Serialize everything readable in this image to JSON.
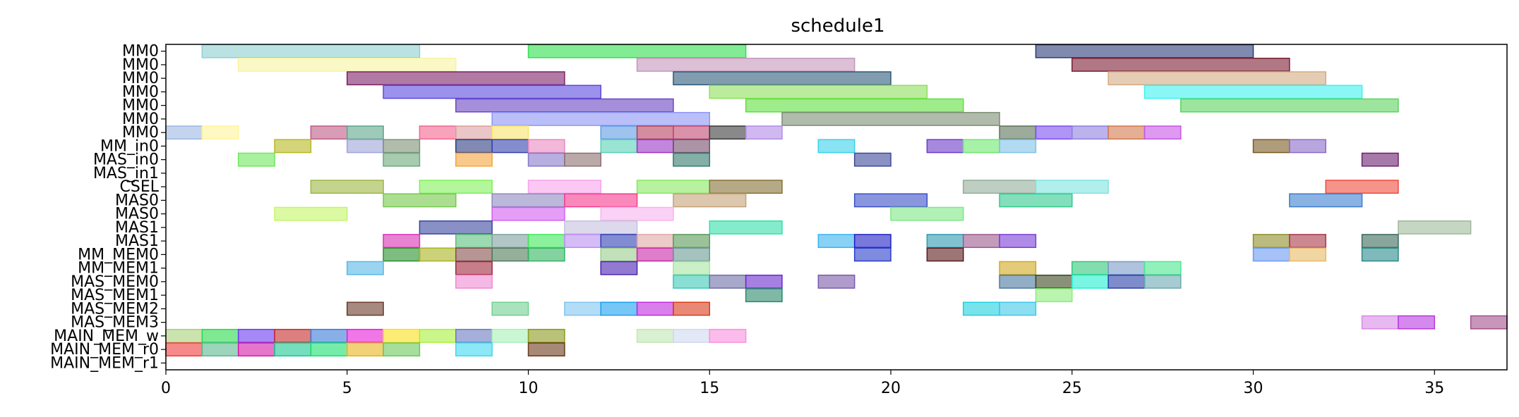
{
  "chart_data": {
    "type": "gantt",
    "title": "schedule1",
    "xlabel": "",
    "ylabel": "",
    "xlim": [
      0,
      37
    ],
    "x_ticks": [
      0,
      5,
      10,
      15,
      20,
      25,
      30,
      35
    ],
    "rows": [
      "MM0",
      "MM0",
      "MM0",
      "MM0",
      "MM0",
      "MM0",
      "MM0",
      "MM_in0",
      "MAS_in0",
      "MAS_in1",
      "CSEL",
      "MAS0",
      "MAS0",
      "MAS1",
      "MAS1",
      "MM_MEM0",
      "MM_MEM1",
      "MAS_MEM0",
      "MAS_MEM1",
      "MAS_MEM2",
      "MAS_MEM3",
      "MAIN_MEM_w",
      "MAIN_MEM_r0",
      "MAIN_MEM_r1"
    ],
    "tasks": [
      {
        "row": 0,
        "start": 1,
        "end": 7,
        "color": "#8ecfcf"
      },
      {
        "row": 0,
        "start": 10,
        "end": 16,
        "color": "#2fe04f"
      },
      {
        "row": 0,
        "start": 24,
        "end": 30,
        "color": "#2c3a78"
      },
      {
        "row": 1,
        "start": 2,
        "end": 8,
        "color": "#f6f3a2"
      },
      {
        "row": 1,
        "start": 13,
        "end": 19,
        "color": "#c396bb"
      },
      {
        "row": 1,
        "start": 25,
        "end": 31,
        "color": "#7b1e33"
      },
      {
        "row": 2,
        "start": 5,
        "end": 11,
        "color": "#7d2168"
      },
      {
        "row": 2,
        "start": 14,
        "end": 20,
        "color": "#2e5a7a"
      },
      {
        "row": 2,
        "start": 26,
        "end": 32,
        "color": "#d4ab83"
      },
      {
        "row": 3,
        "start": 6,
        "end": 12,
        "color": "#5a48e0"
      },
      {
        "row": 3,
        "start": 15,
        "end": 21,
        "color": "#8ee05c"
      },
      {
        "row": 3,
        "start": 27,
        "end": 33,
        "color": "#3cf2f0"
      },
      {
        "row": 4,
        "start": 8,
        "end": 14,
        "color": "#6b45c2"
      },
      {
        "row": 4,
        "start": 16,
        "end": 22,
        "color": "#5fe03d"
      },
      {
        "row": 4,
        "start": 28,
        "end": 34,
        "color": "#5cd35e"
      },
      {
        "row": 5,
        "start": 9,
        "end": 15,
        "color": "#8d95f5"
      },
      {
        "row": 5,
        "start": 17,
        "end": 23,
        "color": "#7d8e75"
      },
      {
        "row": 6,
        "start": 0,
        "end": 1,
        "color": "#9db8e3"
      },
      {
        "row": 6,
        "start": 1,
        "end": 2,
        "color": "#fdf59b"
      },
      {
        "row": 6,
        "start": 4,
        "end": 5,
        "color": "#be5a85"
      },
      {
        "row": 6,
        "start": 5,
        "end": 6,
        "color": "#5ba68a"
      },
      {
        "row": 6,
        "start": 7,
        "end": 8,
        "color": "#f4668e"
      },
      {
        "row": 6,
        "start": 8,
        "end": 9,
        "color": "#dca0a0"
      },
      {
        "row": 6,
        "start": 9,
        "end": 10,
        "color": "#fae36a"
      },
      {
        "row": 6,
        "start": 12,
        "end": 13,
        "color": "#5d9be3"
      },
      {
        "row": 6,
        "start": 13,
        "end": 14,
        "color": "#b4425e"
      },
      {
        "row": 6,
        "start": 14,
        "end": 15,
        "color": "#c04a70"
      },
      {
        "row": 6,
        "start": 15,
        "end": 16,
        "color": "#3a3a3a"
      },
      {
        "row": 6,
        "start": 16,
        "end": 17,
        "color": "#b18be8"
      },
      {
        "row": 6,
        "start": 23,
        "end": 24,
        "color": "#5b7358"
      },
      {
        "row": 6,
        "start": 24,
        "end": 25,
        "color": "#7a4ef0"
      },
      {
        "row": 6,
        "start": 25,
        "end": 26,
        "color": "#8f7fe0"
      },
      {
        "row": 6,
        "start": 26,
        "end": 27,
        "color": "#d2794d"
      },
      {
        "row": 6,
        "start": 27,
        "end": 28,
        "color": "#c656e6"
      },
      {
        "row": 7,
        "start": 3,
        "end": 4,
        "color": "#b7b822"
      },
      {
        "row": 7,
        "start": 5,
        "end": 6,
        "color": "#a0a4d9"
      },
      {
        "row": 7,
        "start": 6,
        "end": 7,
        "color": "#7e8f74"
      },
      {
        "row": 7,
        "start": 8,
        "end": 9,
        "color": "#2c3c80"
      },
      {
        "row": 7,
        "start": 9,
        "end": 10,
        "color": "#3242ad"
      },
      {
        "row": 7,
        "start": 10,
        "end": 11,
        "color": "#e788c0"
      },
      {
        "row": 7,
        "start": 12,
        "end": 13,
        "color": "#59d1b5"
      },
      {
        "row": 7,
        "start": 13,
        "end": 14,
        "color": "#9a35c4"
      },
      {
        "row": 7,
        "start": 14,
        "end": 15,
        "color": "#744c6b"
      },
      {
        "row": 7,
        "start": 18,
        "end": 19,
        "color": "#3ad1ea"
      },
      {
        "row": 7,
        "start": 21,
        "end": 22,
        "color": "#6b3bc9"
      },
      {
        "row": 7,
        "start": 22,
        "end": 23,
        "color": "#6ce86e"
      },
      {
        "row": 7,
        "start": 23,
        "end": 24,
        "color": "#7fc1e6"
      },
      {
        "row": 7,
        "start": 30,
        "end": 31,
        "color": "#7a5a22"
      },
      {
        "row": 7,
        "start": 31,
        "end": 32,
        "color": "#8a6bc9"
      },
      {
        "row": 8,
        "start": 2,
        "end": 3,
        "color": "#6fe85d"
      },
      {
        "row": 8,
        "start": 6,
        "end": 7,
        "color": "#6aa87a"
      },
      {
        "row": 8,
        "start": 8,
        "end": 9,
        "color": "#f5a53e"
      },
      {
        "row": 8,
        "start": 10,
        "end": 11,
        "color": "#8679c9"
      },
      {
        "row": 8,
        "start": 11,
        "end": 12,
        "color": "#8d6f70"
      },
      {
        "row": 8,
        "start": 14,
        "end": 15,
        "color": "#327a6a"
      },
      {
        "row": 8,
        "start": 19,
        "end": 20,
        "color": "#3a4a9a"
      },
      {
        "row": 8,
        "start": 33,
        "end": 34,
        "color": "#6b2070"
      },
      {
        "row": 10,
        "start": 4,
        "end": 6,
        "color": "#9cb844"
      },
      {
        "row": 10,
        "start": 7,
        "end": 9,
        "color": "#80f05a"
      },
      {
        "row": 10,
        "start": 10,
        "end": 12,
        "color": "#f8a3ec"
      },
      {
        "row": 10,
        "start": 13,
        "end": 15,
        "color": "#88e860"
      },
      {
        "row": 10,
        "start": 15,
        "end": 17,
        "color": "#857236"
      },
      {
        "row": 10,
        "start": 22,
        "end": 24,
        "color": "#93ad9a"
      },
      {
        "row": 10,
        "start": 24,
        "end": 26,
        "color": "#7fe5e0"
      },
      {
        "row": 10,
        "start": 32,
        "end": 34,
        "color": "#f04c3e"
      },
      {
        "row": 11,
        "start": 6,
        "end": 8,
        "color": "#74c84a"
      },
      {
        "row": 11,
        "start": 9,
        "end": 11,
        "color": "#8e88c0"
      },
      {
        "row": 11,
        "start": 11,
        "end": 13,
        "color": "#f63b8e"
      },
      {
        "row": 11,
        "start": 14,
        "end": 16,
        "color": "#c4a279"
      },
      {
        "row": 11,
        "start": 19,
        "end": 21,
        "color": "#3a50c8"
      },
      {
        "row": 11,
        "start": 23,
        "end": 25,
        "color": "#30c98e"
      },
      {
        "row": 11,
        "start": 31,
        "end": 33,
        "color": "#3c7ed0"
      },
      {
        "row": 12,
        "start": 3,
        "end": 5,
        "color": "#c4f567"
      },
      {
        "row": 12,
        "start": 9,
        "end": 11,
        "color": "#d25ef2"
      },
      {
        "row": 12,
        "start": 12,
        "end": 14,
        "color": "#f9b3ee"
      },
      {
        "row": 12,
        "start": 20,
        "end": 22,
        "color": "#7ee885"
      },
      {
        "row": 13,
        "start": 7,
        "end": 9,
        "color": "#3846a0"
      },
      {
        "row": 13,
        "start": 11,
        "end": 13,
        "color": "#c4c0e0"
      },
      {
        "row": 13,
        "start": 15,
        "end": 17,
        "color": "#34e0a8"
      },
      {
        "row": 13,
        "start": 34,
        "end": 36,
        "color": "#9eba9a"
      },
      {
        "row": 14,
        "start": 6,
        "end": 7,
        "color": "#d930b4"
      },
      {
        "row": 14,
        "start": 8,
        "end": 9,
        "color": "#5cbf7c"
      },
      {
        "row": 14,
        "start": 9,
        "end": 10,
        "color": "#80a0a0"
      },
      {
        "row": 14,
        "start": 10,
        "end": 11,
        "color": "#3fe85a"
      },
      {
        "row": 14,
        "start": 11,
        "end": 12,
        "color": "#b990f2"
      },
      {
        "row": 14,
        "start": 12,
        "end": 13,
        "color": "#2e40b4"
      },
      {
        "row": 14,
        "start": 13,
        "end": 14,
        "color": "#e0a8a4"
      },
      {
        "row": 14,
        "start": 14,
        "end": 15,
        "color": "#5a9a5a"
      },
      {
        "row": 14,
        "start": 18,
        "end": 19,
        "color": "#3ab4f0"
      },
      {
        "row": 14,
        "start": 19,
        "end": 20,
        "color": "#2020c4"
      },
      {
        "row": 14,
        "start": 21,
        "end": 22,
        "color": "#2e9ab0"
      },
      {
        "row": 14,
        "start": 22,
        "end": 23,
        "color": "#9c5a8e"
      },
      {
        "row": 14,
        "start": 23,
        "end": 24,
        "color": "#7a3ed6"
      },
      {
        "row": 14,
        "start": 30,
        "end": 31,
        "color": "#8e8e2a"
      },
      {
        "row": 14,
        "start": 31,
        "end": 32,
        "color": "#a83848"
      },
      {
        "row": 14,
        "start": 33,
        "end": 34,
        "color": "#3a6a5a"
      },
      {
        "row": 15,
        "start": 6,
        "end": 7,
        "color": "#2a902a"
      },
      {
        "row": 15,
        "start": 7,
        "end": 8,
        "color": "#a8b420"
      },
      {
        "row": 15,
        "start": 8,
        "end": 9,
        "color": "#84504e"
      },
      {
        "row": 15,
        "start": 9,
        "end": 10,
        "color": "#4e7a58"
      },
      {
        "row": 15,
        "start": 10,
        "end": 11,
        "color": "#30b460"
      },
      {
        "row": 15,
        "start": 12,
        "end": 13,
        "color": "#9acd8c"
      },
      {
        "row": 15,
        "start": 13,
        "end": 14,
        "color": "#c826a6"
      },
      {
        "row": 15,
        "start": 14,
        "end": 15,
        "color": "#6a9a92"
      },
      {
        "row": 15,
        "start": 19,
        "end": 20,
        "color": "#2a3ec8"
      },
      {
        "row": 15,
        "start": 21,
        "end": 22,
        "color": "#5a1a1a"
      },
      {
        "row": 15,
        "start": 30,
        "end": 31,
        "color": "#6a9af0"
      },
      {
        "row": 15,
        "start": 31,
        "end": 32,
        "color": "#e8ba68"
      },
      {
        "row": 15,
        "start": 33,
        "end": 34,
        "color": "#2a8a8a"
      },
      {
        "row": 16,
        "start": 5,
        "end": 6,
        "color": "#58b8e8"
      },
      {
        "row": 16,
        "start": 8,
        "end": 9,
        "color": "#a0283e"
      },
      {
        "row": 16,
        "start": 12,
        "end": 13,
        "color": "#4a22b0"
      },
      {
        "row": 16,
        "start": 14,
        "end": 15,
        "color": "#a8e4a0"
      },
      {
        "row": 16,
        "start": 23,
        "end": 24,
        "color": "#d0a820"
      },
      {
        "row": 16,
        "start": 25,
        "end": 26,
        "color": "#30c87a"
      },
      {
        "row": 16,
        "start": 26,
        "end": 27,
        "color": "#7a9ac8"
      },
      {
        "row": 16,
        "start": 27,
        "end": 28,
        "color": "#4ae88e"
      },
      {
        "row": 17,
        "start": 8,
        "end": 9,
        "color": "#f08ad6"
      },
      {
        "row": 17,
        "start": 14,
        "end": 15,
        "color": "#3acab6"
      },
      {
        "row": 17,
        "start": 15,
        "end": 16,
        "color": "#6e6ea8"
      },
      {
        "row": 17,
        "start": 16,
        "end": 17,
        "color": "#6a2ad0"
      },
      {
        "row": 17,
        "start": 18,
        "end": 19,
        "color": "#7a5aaa"
      },
      {
        "row": 17,
        "start": 23,
        "end": 24,
        "color": "#4a78a0"
      },
      {
        "row": 17,
        "start": 24,
        "end": 25,
        "color": "#3a4a20"
      },
      {
        "row": 17,
        "start": 25,
        "end": 26,
        "color": "#20f0d0"
      },
      {
        "row": 17,
        "start": 26,
        "end": 27,
        "color": "#2a40a8"
      },
      {
        "row": 17,
        "start": 27,
        "end": 28,
        "color": "#6aa8b0"
      },
      {
        "row": 18,
        "start": 16,
        "end": 17,
        "color": "#2a8a6a"
      },
      {
        "row": 18,
        "start": 24,
        "end": 25,
        "color": "#8aee7a"
      },
      {
        "row": 19,
        "start": 5,
        "end": 6,
        "color": "#6a3a2a"
      },
      {
        "row": 19,
        "start": 9,
        "end": 10,
        "color": "#70d090"
      },
      {
        "row": 19,
        "start": 11,
        "end": 12,
        "color": "#80c4f2"
      },
      {
        "row": 19,
        "start": 12,
        "end": 13,
        "color": "#1aa0f0"
      },
      {
        "row": 19,
        "start": 13,
        "end": 14,
        "color": "#c02ae0"
      },
      {
        "row": 19,
        "start": 14,
        "end": 15,
        "color": "#d83a1a"
      },
      {
        "row": 19,
        "start": 22,
        "end": 23,
        "color": "#20d0e0"
      },
      {
        "row": 19,
        "start": 23,
        "end": 24,
        "color": "#40c8e8"
      },
      {
        "row": 20,
        "start": 33,
        "end": 34,
        "color": "#d888e8"
      },
      {
        "row": 20,
        "start": 34,
        "end": 35,
        "color": "#b83ae0"
      },
      {
        "row": 20,
        "start": 36,
        "end": 37,
        "color": "#a44e8e"
      },
      {
        "row": 21,
        "start": 0,
        "end": 1,
        "color": "#a8d078"
      },
      {
        "row": 21,
        "start": 1,
        "end": 2,
        "color": "#2ad84a"
      },
      {
        "row": 21,
        "start": 2,
        "end": 3,
        "color": "#6a3af0"
      },
      {
        "row": 21,
        "start": 3,
        "end": 4,
        "color": "#c82a2a"
      },
      {
        "row": 21,
        "start": 4,
        "end": 5,
        "color": "#3a7ad8"
      },
      {
        "row": 21,
        "start": 5,
        "end": 6,
        "color": "#e81ad8"
      },
      {
        "row": 21,
        "start": 6,
        "end": 7,
        "color": "#fae01a"
      },
      {
        "row": 21,
        "start": 7,
        "end": 8,
        "color": "#a8f03a"
      },
      {
        "row": 21,
        "start": 8,
        "end": 9,
        "color": "#6a7ac0"
      },
      {
        "row": 21,
        "start": 9,
        "end": 10,
        "color": "#a8f0b8"
      },
      {
        "row": 21,
        "start": 10,
        "end": 11,
        "color": "#8a9a1a"
      },
      {
        "row": 21,
        "start": 13,
        "end": 14,
        "color": "#c0e8b0"
      },
      {
        "row": 21,
        "start": 14,
        "end": 15,
        "color": "#d0d8f0"
      },
      {
        "row": 21,
        "start": 15,
        "end": 16,
        "color": "#f890e0"
      },
      {
        "row": 22,
        "start": 0,
        "end": 1,
        "color": "#f03a3a"
      },
      {
        "row": 22,
        "start": 1,
        "end": 2,
        "color": "#5ab890"
      },
      {
        "row": 22,
        "start": 2,
        "end": 3,
        "color": "#d41aa8"
      },
      {
        "row": 22,
        "start": 3,
        "end": 4,
        "color": "#1ac890"
      },
      {
        "row": 22,
        "start": 4,
        "end": 5,
        "color": "#1ae070"
      },
      {
        "row": 22,
        "start": 5,
        "end": 6,
        "color": "#e8b41a"
      },
      {
        "row": 22,
        "start": 6,
        "end": 7,
        "color": "#6ac85a"
      },
      {
        "row": 22,
        "start": 8,
        "end": 9,
        "color": "#40d8f0"
      },
      {
        "row": 22,
        "start": 10,
        "end": 11,
        "color": "#6a3a1a"
      }
    ]
  }
}
